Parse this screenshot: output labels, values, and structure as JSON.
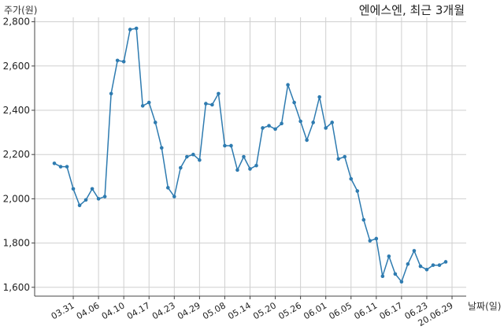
{
  "chart_data": {
    "type": "line",
    "title": "엔에스엔, 최근 3개월",
    "ylabel": "주가(원)",
    "xlabel": "날짜(일)",
    "ylim": [
      1560,
      2820
    ],
    "yticks": [
      1600,
      1800,
      2000,
      2200,
      2400,
      2600,
      2800
    ],
    "ytick_labels": [
      "1,600",
      "1,800",
      "2,000",
      "2,200",
      "2,400",
      "2,600",
      "2,800"
    ],
    "grid": true,
    "line_color": "#2e7bb0",
    "xtick_labels": [
      {
        "index": 3,
        "label": "03.31"
      },
      {
        "index": 7,
        "label": "04.06"
      },
      {
        "index": 11,
        "label": "04.10"
      },
      {
        "index": 15,
        "label": "04.17"
      },
      {
        "index": 19,
        "label": "04.23"
      },
      {
        "index": 23,
        "label": "04.29"
      },
      {
        "index": 27,
        "label": "05.08"
      },
      {
        "index": 31,
        "label": "05.14"
      },
      {
        "index": 35,
        "label": "05.20"
      },
      {
        "index": 39,
        "label": "05.26"
      },
      {
        "index": 43,
        "label": "06.01"
      },
      {
        "index": 47,
        "label": "06.05"
      },
      {
        "index": 51,
        "label": "06.11"
      },
      {
        "index": 55,
        "label": "06.17"
      },
      {
        "index": 59,
        "label": "06.23"
      },
      {
        "index": 63,
        "label": "20.06.29"
      }
    ],
    "values": [
      2160,
      2145,
      2145,
      2045,
      1970,
      1995,
      2045,
      2000,
      2010,
      2475,
      2625,
      2620,
      2765,
      2770,
      2420,
      2435,
      2345,
      2230,
      2050,
      2010,
      2140,
      2190,
      2200,
      2175,
      2430,
      2425,
      2475,
      2240,
      2240,
      2130,
      2190,
      2135,
      2150,
      2320,
      2330,
      2315,
      2340,
      2515,
      2435,
      2350,
      2265,
      2345,
      2460,
      2320,
      2345,
      2180,
      2190,
      2090,
      2035,
      1905,
      1810,
      1820,
      1650,
      1740,
      1660,
      1625,
      1705,
      1765,
      1695,
      1680,
      1700,
      1700,
      1715
    ]
  }
}
